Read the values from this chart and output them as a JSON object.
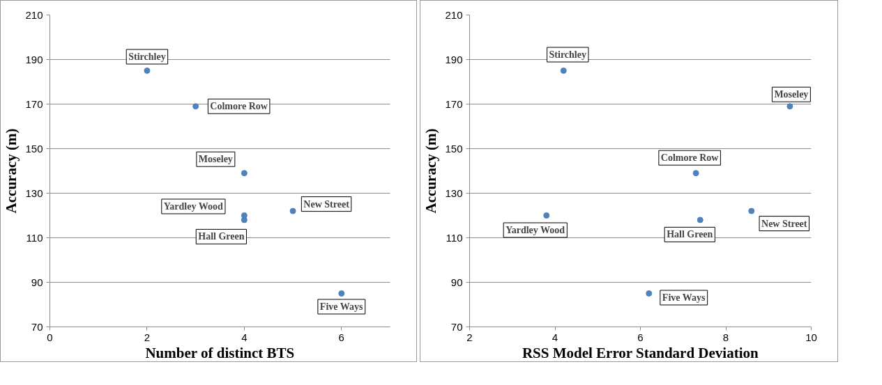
{
  "chart_data": [
    {
      "type": "scatter",
      "xlabel": "Number of distinct BTS",
      "ylabel": "Accuracy (m)",
      "xlim": [
        0,
        7
      ],
      "xticks": [
        0,
        2,
        4,
        6
      ],
      "ylim": [
        70,
        210
      ],
      "yticks": [
        70,
        90,
        110,
        130,
        150,
        170,
        190,
        210
      ],
      "grid": "y",
      "marker": "circle",
      "series": [
        {
          "color": "#4f81bd",
          "x": [
            2,
            3,
            4,
            4,
            4,
            5,
            6
          ],
          "values": [
            185,
            169,
            139,
            120,
            118,
            122,
            85
          ]
        }
      ],
      "annotations": [
        {
          "text": "Stirchley",
          "x": 2,
          "y": 185
        },
        {
          "text": "Colmore Row",
          "x": 3,
          "y": 169
        },
        {
          "text": "Moseley",
          "x": 4,
          "y": 139
        },
        {
          "text": "Yardley Wood",
          "x": 4,
          "y": 120
        },
        {
          "text": "Hall Green",
          "x": 4,
          "y": 118
        },
        {
          "text": "New Street",
          "x": 5,
          "y": 122
        },
        {
          "text": "Five Ways",
          "x": 6,
          "y": 85
        }
      ]
    },
    {
      "type": "scatter",
      "xlabel": "RSS Model Error Standard Deviation",
      "ylabel": "Accuracy (m)",
      "xlim": [
        2,
        10
      ],
      "xticks": [
        2,
        4,
        6,
        8,
        10
      ],
      "ylim": [
        70,
        210
      ],
      "yticks": [
        70,
        90,
        110,
        130,
        150,
        170,
        190,
        210
      ],
      "grid": "y",
      "marker": "circle",
      "series": [
        {
          "color": "#4f81bd",
          "x": [
            4.2,
            9.5,
            7.3,
            3.8,
            7.4,
            8.6,
            6.2
          ],
          "values": [
            185,
            169,
            139,
            120,
            118,
            122,
            85
          ]
        }
      ],
      "annotations": [
        {
          "text": "Stirchley",
          "x": 4.2,
          "y": 185
        },
        {
          "text": "Moseley",
          "x": 9.5,
          "y": 169
        },
        {
          "text": "Colmore Row",
          "x": 7.3,
          "y": 139
        },
        {
          "text": "Yardley Wood",
          "x": 3.8,
          "y": 120
        },
        {
          "text": "Hall Green",
          "x": 7.4,
          "y": 118
        },
        {
          "text": "New Street",
          "x": 8.6,
          "y": 122
        },
        {
          "text": "Five Ways",
          "x": 6.2,
          "y": 85
        }
      ]
    }
  ]
}
